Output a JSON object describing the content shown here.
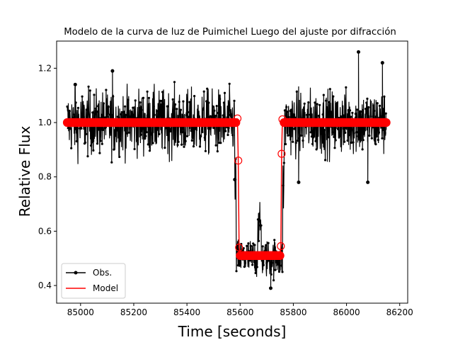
{
  "chart_data": {
    "type": "line",
    "title": "Modelo de la curva de luz de Puimichel Luego del ajuste por difracción",
    "xlabel": "Time [seconds]",
    "ylabel": "Relative Flux",
    "xlim": [
      84910,
      86230
    ],
    "ylim": [
      0.335,
      1.3
    ],
    "xticks": [
      85000,
      85200,
      85400,
      85600,
      85800,
      86000,
      86200
    ],
    "yticks": [
      0.4,
      0.6,
      0.8,
      1.0,
      1.2
    ],
    "xtick_labels": [
      "85000",
      "85200",
      "85400",
      "85600",
      "85800",
      "86000",
      "86200"
    ],
    "ytick_labels": [
      "0.4",
      "0.6",
      "0.8",
      "1.0",
      "1.2"
    ],
    "grid": false,
    "legend": {
      "position": "lower-left",
      "entries": [
        {
          "name": "Obs.",
          "color": "#000000",
          "marker": "circle"
        },
        {
          "name": "Model",
          "color": "#ff0000",
          "marker": "none"
        }
      ]
    },
    "series": [
      {
        "name": "Obs.",
        "color": "#000000",
        "description_points": "noisy observations sampled every ~1 s",
        "x_range": [
          84950,
          86150
        ],
        "baseline": 1.0,
        "baseline_spread": 0.2,
        "occultation": {
          "ingress": 85585,
          "egress": 85760,
          "floor": 0.5,
          "floor_spread": 0.12
        },
        "outliers": [
          [
            84980,
            1.14
          ],
          [
            85120,
            1.19
          ],
          [
            85580,
            0.79
          ],
          [
            85715,
            0.39
          ],
          [
            85820,
            0.78
          ],
          [
            86045,
            1.26
          ],
          [
            86135,
            1.22
          ],
          [
            86080,
            0.78
          ]
        ]
      },
      {
        "name": "Model",
        "color": "#ff0000",
        "x": [
          84950,
          85585,
          85590,
          85593,
          85596,
          85600,
          85660,
          85750,
          85753,
          85756,
          85759,
          85762,
          85765,
          86150
        ],
        "y": [
          1.0,
          1.0,
          1.015,
          0.86,
          0.54,
          0.51,
          0.51,
          0.51,
          0.545,
          0.885,
          1.012,
          1.0,
          1.0,
          1.0
        ],
        "ring_markers": [
          [
            85590,
            1.015
          ],
          [
            85593,
            0.86
          ],
          [
            85596,
            0.54
          ],
          [
            85753,
            0.545
          ],
          [
            85756,
            0.885
          ],
          [
            85759,
            1.012
          ]
        ]
      }
    ]
  }
}
